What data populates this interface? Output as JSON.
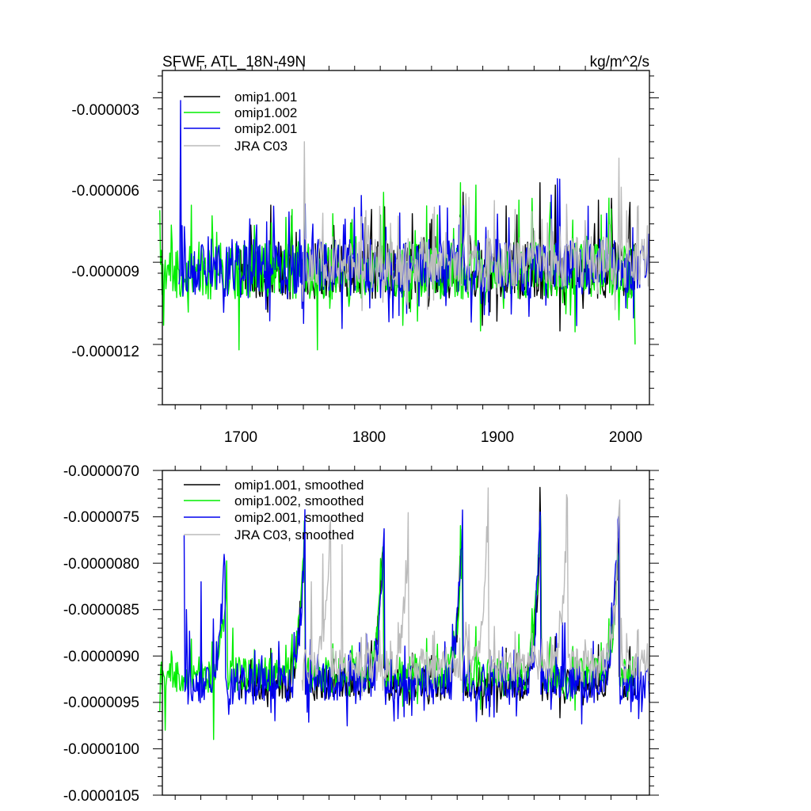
{
  "chart_data": [
    {
      "type": "line",
      "title": "SFWF, ATL_18N-49N",
      "units": "kg/m^2/s",
      "xlim": [
        1640,
        2020
      ],
      "ylim": [
        -1.42e-05,
        -2e-06
      ],
      "xticks": [
        1700,
        1800,
        1900,
        2000
      ],
      "xtick_labels": [
        "1700",
        "1800",
        "1900",
        "2000"
      ],
      "yticks": [
        -3e-06,
        -6e-06,
        -9e-06,
        -1.2e-05
      ],
      "ytick_labels": [
        "-0.000003",
        "-0.000006",
        "-0.000009",
        "-0.000012"
      ],
      "legend_position": "top-left",
      "series": [
        {
          "name": "omip1.001",
          "label": "omip1.001",
          "color": "#000000",
          "x_range": [
            1700,
            2009
          ],
          "mean": -9.3e-06,
          "amp": 1.9e-06,
          "spike": 2.5e-06,
          "seed": 11,
          "cycles": [],
          "events": []
        },
        {
          "name": "omip1.002",
          "label": "omip1.002",
          "color": "#00ee00",
          "x_range": [
            1638,
            2009
          ],
          "mean": -9.3e-06,
          "amp": 1.9e-06,
          "spike": 2.5e-06,
          "seed": 11,
          "cycles": [],
          "events": [
            [
              1638,
              -7.1e-06
            ],
            [
              1641,
              -1.13e-05
            ],
            [
              1700,
              -1.22e-05
            ],
            [
              1761,
              -1.22e-05
            ],
            [
              2009,
              -1.2e-05
            ]
          ]
        },
        {
          "name": "omip2.001",
          "label": "omip2.001",
          "color": "#0000ee",
          "x_range": [
            1653,
            2020
          ],
          "mean": -9.2e-06,
          "amp": 1.9e-06,
          "spike": 2.5e-06,
          "seed": 29,
          "cycles": [],
          "events": [
            [
              1654,
              -3.1e-06
            ],
            [
              1657,
              -7.7e-06
            ]
          ]
        },
        {
          "name": "JRA C03",
          "label": "JRA C03",
          "color": "#bbbbbb",
          "x_range": [
            1749,
            2019
          ],
          "mean": -9e-06,
          "amp": 1.7e-06,
          "spike": 2.2e-06,
          "seed": 53,
          "cycles": [],
          "events": [
            [
              1751,
              -4.6e-06
            ],
            [
              1996,
              -5.2e-06
            ]
          ]
        }
      ]
    },
    {
      "type": "line",
      "title": "",
      "xlim": [
        1640,
        2020
      ],
      "ylim": [
        -1.05e-05,
        -7e-06
      ],
      "xticks": [
        1700,
        1800,
        1900,
        2000
      ],
      "yticks": [
        -7e-06,
        -7.5e-06,
        -8e-06,
        -8.5e-06,
        -9e-06,
        -9.5e-06,
        -1e-05,
        -1.05e-05
      ],
      "ytick_labels": [
        "-0.0000070",
        "-0.0000075",
        "-0.0000080",
        "-0.0000085",
        "-0.0000090",
        "-0.0000095",
        "-0.0000100",
        "-0.0000105"
      ],
      "legend_position": "top-left",
      "series": [
        {
          "name": "omip1.001, smoothed",
          "label": "omip1.001, smoothed",
          "color": "#000000",
          "x_range": [
            1700,
            2009
          ],
          "mean": -9.3e-06,
          "amp": 3.3e-07,
          "spike": 4e-07,
          "seed": 11,
          "cycles": [
            [
              1750,
              -7.6e-06
            ],
            [
              1811,
              -7.8e-06
            ],
            [
              1873,
              -7.7e-06
            ],
            [
              1934,
              -7.5e-06
            ],
            [
              1995,
              -7.6e-06
            ]
          ],
          "events": []
        },
        {
          "name": "omip1.002, smoothed",
          "label": "omip1.002, smoothed",
          "color": "#00ee00",
          "x_range": [
            1638,
            2009
          ],
          "mean": -9.2e-06,
          "amp": 3.5e-07,
          "spike": 4e-07,
          "seed": 11,
          "cycles": [
            [
              1689,
              -8.1e-06
            ],
            [
              1750,
              -7.6e-06
            ],
            [
              1811,
              -7.8e-06
            ],
            [
              1873,
              -7.7e-06
            ],
            [
              1934,
              -7.5e-06
            ],
            [
              1995,
              -7.7e-06
            ]
          ],
          "events": [
            [
              1638,
              -9.6e-06
            ],
            [
              1642,
              -9.8e-06
            ],
            [
              1660,
              -9.4e-06
            ],
            [
              1680,
              -9.9e-06
            ],
            [
              1695,
              -8.7e-06
            ]
          ]
        },
        {
          "name": "omip2.001, smoothed",
          "label": "omip2.001, smoothed",
          "color": "#0000ee",
          "x_range": [
            1657,
            2020
          ],
          "mean": -9.3e-06,
          "amp": 4e-07,
          "spike": 5e-07,
          "seed": 29,
          "cycles": [
            [
              1688,
              -7.8e-06
            ],
            [
              1750,
              -7.7e-06
            ],
            [
              1812,
              -7.6e-06
            ],
            [
              1873,
              -7.6e-06
            ],
            [
              1934,
              -7.4e-06
            ],
            [
              1995,
              -7.4e-06
            ]
          ],
          "events": [
            [
              1657,
              -7.7e-06
            ],
            [
              1659,
              -8.5e-06
            ],
            [
              1670,
              -8.2e-06
            ],
            [
              1680,
              -8.6e-06
            ],
            [
              2014,
              -9.6e-06
            ],
            [
              2020,
              -9.5e-06
            ]
          ]
        },
        {
          "name": "JRA C03, smoothed",
          "label": "JRA C03, smoothed",
          "color": "#bbbbbb",
          "x_range": [
            1749,
            2019
          ],
          "mean": -9.1e-06,
          "amp": 3.3e-07,
          "spike": 4e-07,
          "seed": 53,
          "cycles": [
            [
              1770,
              -7.5e-06
            ],
            [
              1831,
              -7.5e-06
            ],
            [
              1893,
              -7.4e-06
            ],
            [
              1955,
              -7.4e-06
            ],
            [
              1996,
              -7.2e-06
            ]
          ],
          "events": [
            [
              1756,
              -8.2e-06
            ],
            [
              1765,
              -7.9e-06
            ],
            [
              1780,
              -7.8e-06
            ]
          ]
        }
      ]
    }
  ]
}
